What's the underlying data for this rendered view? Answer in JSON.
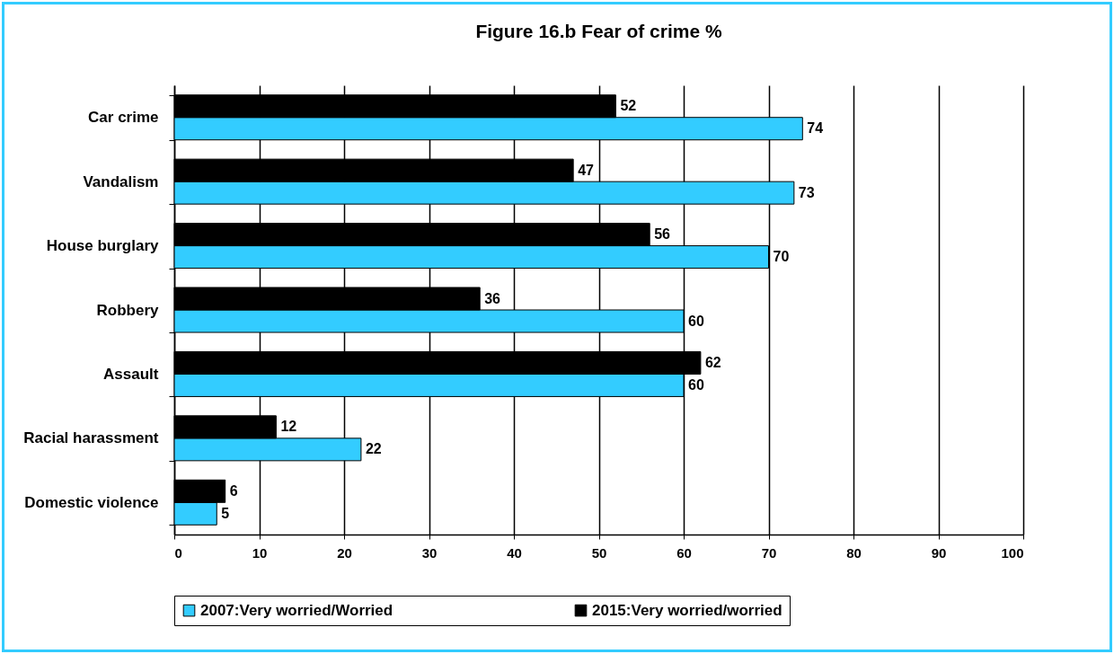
{
  "chart_data": {
    "type": "bar",
    "orientation": "horizontal",
    "title": "Figure 16.b Fear of crime %",
    "categories": [
      "Car crime",
      "Vandalism",
      "House burglary",
      "Robbery",
      "Assault",
      "Racial harassment",
      "Domestic violence"
    ],
    "series": [
      {
        "name": "2007:Very worried/Worried",
        "color": "#33ccff",
        "values": [
          74,
          73,
          70,
          60,
          60,
          22,
          5
        ]
      },
      {
        "name": "2015:Very worried/worried",
        "color": "#000000",
        "values": [
          52,
          47,
          56,
          36,
          62,
          12,
          6
        ]
      }
    ],
    "xlim": [
      0,
      100
    ],
    "xticks": [
      0,
      10,
      20,
      30,
      40,
      50,
      60,
      70,
      80,
      90,
      100
    ],
    "grid": "x",
    "legend": "bottom",
    "data_labels": true
  }
}
